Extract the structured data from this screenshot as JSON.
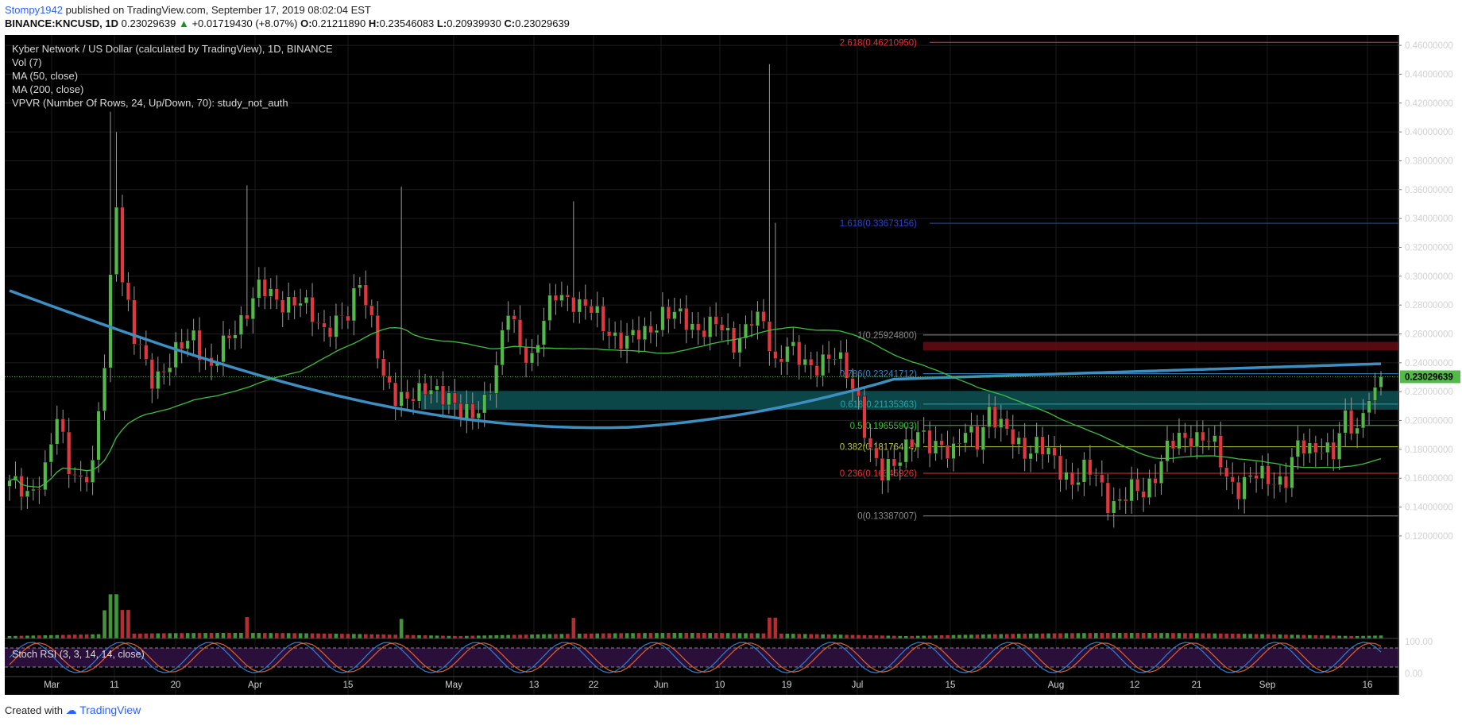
{
  "header": {
    "author": "Stompy1942",
    "published_text": "published on TradingView.com, September 17, 2019 08:02:04 EST",
    "symbol": "BINANCE:KNCUSD, 1D",
    "last": "0.23029639",
    "change": "+0.01719430 (+8.07%)",
    "o_label": "O:",
    "o": "0.21211890",
    "h_label": "H:",
    "h": "0.23546083",
    "l_label": "L:",
    "l": "0.20939930",
    "c_label": "C:",
    "c": "0.23029639"
  },
  "legend": {
    "title": "Kyber Network / US Dollar (calculated by TradingView), 1D, BINANCE",
    "vol": "Vol (7)",
    "ma50": "MA (50, close)",
    "ma200": "MA (200, close)",
    "vpvr": "VPVR (Number Of Rows, 24, Up/Down, 70): study_not_auth"
  },
  "stoch_label": "Stoch RSI (3, 3, 14, 14, close)",
  "footer": {
    "created_with": "Created with",
    "brand": "TradingView"
  },
  "colors": {
    "background": "#000000",
    "up_candle": "#53b948",
    "down_candle": "#e0383e",
    "ma50": "#3fbf3f",
    "ma200": "#3d8fc2",
    "stoch_k": "#2f7fd6",
    "stoch_d": "#e0622a",
    "last_price_badge": "#53b948"
  },
  "chart_data": {
    "type": "candlestick",
    "title": "Kyber Network / US Dollar (calculated by TradingView), 1D, BINANCE",
    "y_range": [
      0.115,
      0.465
    ],
    "y_ticks": [
      "0.46000000",
      "0.44000000",
      "0.42000000",
      "0.40000000",
      "0.38000000",
      "0.36000000",
      "0.34000000",
      "0.32000000",
      "0.30000000",
      "0.28000000",
      "0.26000000",
      "0.24000000",
      "0.22000000",
      "0.20000000",
      "0.18000000",
      "0.16000000",
      "0.14000000",
      "0.12000000"
    ],
    "x_ticks": [
      "Mar",
      "11",
      "20",
      "Apr",
      "15",
      "May",
      "13",
      "22",
      "Jun",
      "10",
      "19",
      "Jul",
      "15",
      "Aug",
      "12",
      "21",
      "Sep",
      "16"
    ],
    "last_price": 0.23029639,
    "last_price_label": "0.23029639",
    "fib_levels": [
      {
        "label": "2.618(0.46210950)",
        "value": 0.4621095,
        "color": "#e03535"
      },
      {
        "label": "1.618(0.33673156)",
        "value": 0.33673156,
        "color": "#2d45c9"
      },
      {
        "label": "1(0.25924800)",
        "value": 0.259248,
        "color": "#8a8a8a"
      },
      {
        "label": "0.786(0.23241712)",
        "value": 0.23241712,
        "color": "#3a86c4"
      },
      {
        "label": "0.618(0.21135363)",
        "value": 0.21135363,
        "color": "#2aa4a8"
      },
      {
        "label": "0.5(0.19655903)",
        "value": 0.19655903,
        "color": "#3fbf3f"
      },
      {
        "label": "0.382(0.18176444)",
        "value": 0.18176444,
        "color": "#b8c62e"
      },
      {
        "label": "0.236(0.16345926)",
        "value": 0.16345926,
        "color": "#e03535"
      },
      {
        "label": "0(0.13387007)",
        "value": 0.13387007,
        "color": "#8a8a8a"
      }
    ],
    "zones": [
      {
        "y_low": 0.2485,
        "y_high": 0.2545,
        "color": "#5a0c10"
      },
      {
        "y_low": 0.2075,
        "y_high": 0.2205,
        "color": "#0c4a4c"
      }
    ],
    "anchors": [
      {
        "day": 0,
        "value": 0.155
      },
      {
        "day": 3,
        "value": 0.15
      },
      {
        "day": 6,
        "value": 0.165
      },
      {
        "day": 8,
        "value": 0.2
      },
      {
        "day": 10,
        "value": 0.17
      },
      {
        "day": 12,
        "value": 0.16
      },
      {
        "day": 14,
        "value": 0.165
      },
      {
        "day": 16,
        "value": 0.24
      },
      {
        "day": 18,
        "value": 0.355
      },
      {
        "day": 19,
        "value": 0.3
      },
      {
        "day": 21,
        "value": 0.255
      },
      {
        "day": 24,
        "value": 0.23
      },
      {
        "day": 27,
        "value": 0.24
      },
      {
        "day": 31,
        "value": 0.26
      },
      {
        "day": 34,
        "value": 0.235
      },
      {
        "day": 38,
        "value": 0.265
      },
      {
        "day": 42,
        "value": 0.29
      },
      {
        "day": 45,
        "value": 0.285
      },
      {
        "day": 49,
        "value": 0.28
      },
      {
        "day": 53,
        "value": 0.265
      },
      {
        "day": 57,
        "value": 0.27
      },
      {
        "day": 59,
        "value": 0.3
      },
      {
        "day": 61,
        "value": 0.27
      },
      {
        "day": 63,
        "value": 0.225
      },
      {
        "day": 65,
        "value": 0.215
      },
      {
        "day": 67,
        "value": 0.22
      },
      {
        "day": 71,
        "value": 0.218
      },
      {
        "day": 74,
        "value": 0.22
      },
      {
        "day": 76,
        "value": 0.205
      },
      {
        "day": 78,
        "value": 0.2
      },
      {
        "day": 80,
        "value": 0.215
      },
      {
        "day": 82,
        "value": 0.24
      },
      {
        "day": 84,
        "value": 0.275
      },
      {
        "day": 86,
        "value": 0.25
      },
      {
        "day": 88,
        "value": 0.245
      },
      {
        "day": 90,
        "value": 0.27
      },
      {
        "day": 92,
        "value": 0.285
      },
      {
        "day": 95,
        "value": 0.285
      },
      {
        "day": 98,
        "value": 0.275
      },
      {
        "day": 100,
        "value": 0.265
      },
      {
        "day": 104,
        "value": 0.255
      },
      {
        "day": 107,
        "value": 0.26
      },
      {
        "day": 110,
        "value": 0.275
      },
      {
        "day": 113,
        "value": 0.27
      },
      {
        "day": 116,
        "value": 0.265
      },
      {
        "day": 119,
        "value": 0.265
      },
      {
        "day": 122,
        "value": 0.255
      },
      {
        "day": 125,
        "value": 0.27
      },
      {
        "day": 127,
        "value": 0.265
      },
      {
        "day": 129,
        "value": 0.24
      },
      {
        "day": 131,
        "value": 0.255
      },
      {
        "day": 133,
        "value": 0.24
      },
      {
        "day": 135,
        "value": 0.235
      },
      {
        "day": 137,
        "value": 0.245
      },
      {
        "day": 139,
        "value": 0.245
      },
      {
        "day": 141,
        "value": 0.23
      },
      {
        "day": 143,
        "value": 0.215
      },
      {
        "day": 145,
        "value": 0.18
      },
      {
        "day": 147,
        "value": 0.16
      },
      {
        "day": 149,
        "value": 0.17
      },
      {
        "day": 151,
        "value": 0.185
      },
      {
        "day": 153,
        "value": 0.19
      },
      {
        "day": 155,
        "value": 0.18
      },
      {
        "day": 157,
        "value": 0.185
      },
      {
        "day": 159,
        "value": 0.18
      },
      {
        "day": 161,
        "value": 0.19
      },
      {
        "day": 163,
        "value": 0.185
      },
      {
        "day": 165,
        "value": 0.21
      },
      {
        "day": 167,
        "value": 0.195
      },
      {
        "day": 169,
        "value": 0.185
      },
      {
        "day": 171,
        "value": 0.18
      },
      {
        "day": 173,
        "value": 0.185
      },
      {
        "day": 175,
        "value": 0.175
      },
      {
        "day": 177,
        "value": 0.165
      },
      {
        "day": 179,
        "value": 0.16
      },
      {
        "day": 181,
        "value": 0.165
      },
      {
        "day": 183,
        "value": 0.16
      },
      {
        "day": 185,
        "value": 0.145
      },
      {
        "day": 187,
        "value": 0.145
      },
      {
        "day": 189,
        "value": 0.15
      },
      {
        "day": 191,
        "value": 0.15
      },
      {
        "day": 193,
        "value": 0.165
      },
      {
        "day": 195,
        "value": 0.18
      },
      {
        "day": 197,
        "value": 0.185
      },
      {
        "day": 199,
        "value": 0.19
      },
      {
        "day": 201,
        "value": 0.19
      },
      {
        "day": 203,
        "value": 0.18
      },
      {
        "day": 205,
        "value": 0.16
      },
      {
        "day": 207,
        "value": 0.155
      },
      {
        "day": 209,
        "value": 0.16
      },
      {
        "day": 211,
        "value": 0.16
      },
      {
        "day": 213,
        "value": 0.16
      },
      {
        "day": 215,
        "value": 0.16
      },
      {
        "day": 217,
        "value": 0.18
      },
      {
        "day": 219,
        "value": 0.18
      },
      {
        "day": 221,
        "value": 0.185
      },
      {
        "day": 223,
        "value": 0.175
      },
      {
        "day": 225,
        "value": 0.2
      },
      {
        "day": 227,
        "value": 0.195
      },
      {
        "day": 229,
        "value": 0.22
      },
      {
        "day": 230,
        "value": 0.215
      },
      {
        "day": 231,
        "value": 0.23
      }
    ],
    "spikes": [
      {
        "day": 17,
        "high": 0.414
      },
      {
        "day": 18,
        "high": 0.4
      },
      {
        "day": 40,
        "high": 0.363
      },
      {
        "day": 66,
        "high": 0.362
      },
      {
        "day": 95,
        "high": 0.352
      },
      {
        "day": 128,
        "high": 0.447
      },
      {
        "day": 129,
        "high": 0.337
      }
    ]
  }
}
